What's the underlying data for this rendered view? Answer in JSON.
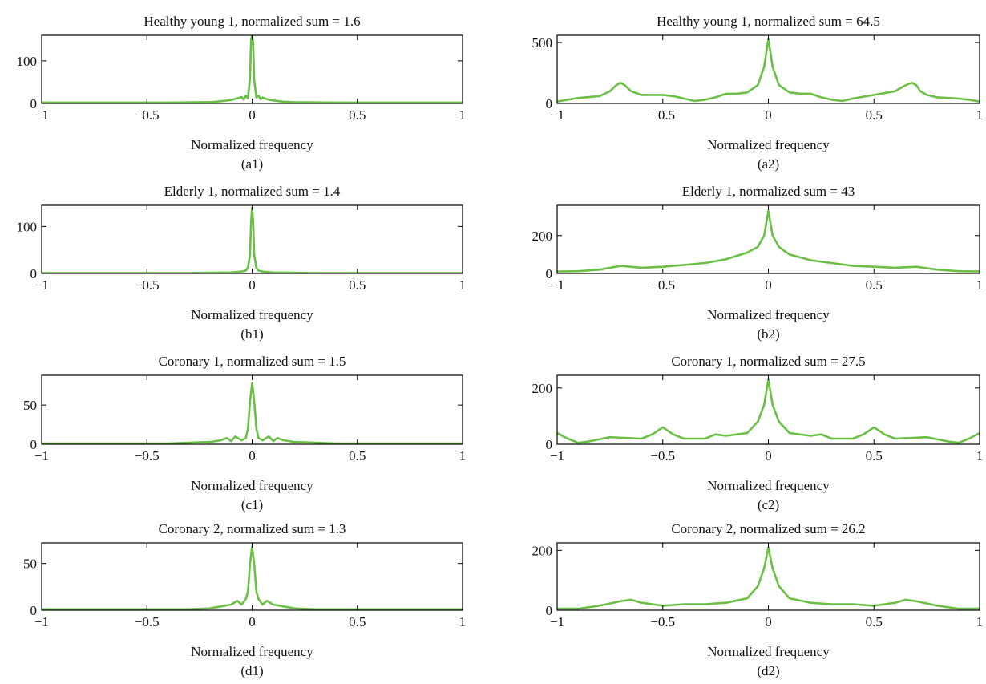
{
  "figure": {
    "line_color": "#6abf45"
  },
  "chart_data": [
    {
      "type": "line",
      "panel_label": "(a1)",
      "title": "Healthy young 1, normalized sum  = 1.6",
      "xlabel": "Normalized frequency",
      "ylabel": "",
      "xlim": [
        -1,
        1
      ],
      "ylim": [
        0,
        160
      ],
      "xticks": [
        -1,
        -0.5,
        0,
        0.5,
        1
      ],
      "xtick_labels": [
        "−1",
        "−0.5",
        "0",
        "0.5",
        "1"
      ],
      "yticks": [
        0,
        100
      ],
      "ytick_labels": [
        "0",
        "100"
      ],
      "series": [
        {
          "x": [
            -1,
            -0.4,
            -0.2,
            -0.15,
            -0.1,
            -0.07,
            -0.05,
            -0.04,
            -0.03,
            -0.02,
            -0.01,
            -0.005,
            0,
            0.005,
            0.01,
            0.02,
            0.03,
            0.04,
            0.05,
            0.07,
            0.1,
            0.15,
            0.2,
            0.4,
            1
          ],
          "y": [
            2,
            2,
            3,
            5,
            8,
            12,
            15,
            9,
            18,
            12,
            60,
            150,
            160,
            140,
            55,
            14,
            18,
            10,
            14,
            10,
            7,
            4,
            3,
            2,
            2
          ]
        }
      ]
    },
    {
      "type": "line",
      "panel_label": "(a2)",
      "title": "Healthy young 1, normalized sum  = 64.5",
      "xlabel": "Normalized frequency",
      "ylabel": "",
      "xlim": [
        -1,
        1
      ],
      "ylim": [
        0,
        560
      ],
      "xticks": [
        -1,
        -0.5,
        0,
        0.5,
        1
      ],
      "xtick_labels": [
        "−1",
        "−0.5",
        "0",
        "0.5",
        "1"
      ],
      "yticks": [
        0,
        500
      ],
      "ytick_labels": [
        "0",
        "500"
      ],
      "series": [
        {
          "x": [
            -1,
            -0.95,
            -0.9,
            -0.8,
            -0.75,
            -0.72,
            -0.7,
            -0.68,
            -0.65,
            -0.6,
            -0.5,
            -0.45,
            -0.4,
            -0.35,
            -0.3,
            -0.25,
            -0.2,
            -0.15,
            -0.1,
            -0.05,
            -0.02,
            0,
            0.02,
            0.05,
            0.1,
            0.15,
            0.2,
            0.25,
            0.3,
            0.35,
            0.4,
            0.5,
            0.6,
            0.65,
            0.68,
            0.7,
            0.72,
            0.75,
            0.8,
            0.9,
            0.95,
            1
          ],
          "y": [
            15,
            30,
            45,
            60,
            100,
            150,
            170,
            150,
            100,
            70,
            70,
            60,
            40,
            20,
            30,
            50,
            80,
            80,
            90,
            150,
            300,
            530,
            300,
            150,
            90,
            80,
            80,
            50,
            30,
            20,
            40,
            70,
            100,
            150,
            170,
            150,
            100,
            70,
            50,
            40,
            30,
            15
          ]
        }
      ]
    },
    {
      "type": "line",
      "panel_label": "(b1)",
      "title": "Elderly 1, normalized sum  = 1.4",
      "xlabel": "Normalized frequency",
      "ylabel": "",
      "xlim": [
        -1,
        1
      ],
      "ylim": [
        0,
        145
      ],
      "xticks": [
        -1,
        -0.5,
        0,
        0.5,
        1
      ],
      "xtick_labels": [
        "−1",
        "−0.5",
        "0",
        "0.5",
        "1"
      ],
      "yticks": [
        0,
        100
      ],
      "ytick_labels": [
        "0",
        "100"
      ],
      "series": [
        {
          "x": [
            -1,
            -0.3,
            -0.1,
            -0.05,
            -0.03,
            -0.02,
            -0.01,
            -0.005,
            0,
            0.005,
            0.01,
            0.02,
            0.03,
            0.05,
            0.1,
            0.3,
            1
          ],
          "y": [
            1,
            1,
            2,
            4,
            6,
            12,
            40,
            110,
            140,
            110,
            40,
            12,
            6,
            4,
            2,
            1,
            1
          ]
        }
      ]
    },
    {
      "type": "line",
      "panel_label": "(b2)",
      "title": "Elderly 1, normalized sum  = 43",
      "xlabel": "Normalized frequency",
      "ylabel": "",
      "xlim": [
        -1,
        1
      ],
      "ylim": [
        0,
        360
      ],
      "xticks": [
        -1,
        -0.5,
        0,
        0.5,
        1
      ],
      "xtick_labels": [
        "−1",
        "−0.5",
        "0",
        "0.5",
        "1"
      ],
      "yticks": [
        0,
        200
      ],
      "ytick_labels": [
        "0",
        "200"
      ],
      "series": [
        {
          "x": [
            -1,
            -0.9,
            -0.8,
            -0.7,
            -0.6,
            -0.5,
            -0.4,
            -0.3,
            -0.2,
            -0.1,
            -0.05,
            -0.02,
            0,
            0.02,
            0.05,
            0.1,
            0.2,
            0.3,
            0.4,
            0.5,
            0.6,
            0.7,
            0.8,
            0.9,
            1
          ],
          "y": [
            10,
            12,
            20,
            40,
            30,
            35,
            45,
            55,
            75,
            110,
            140,
            200,
            330,
            200,
            140,
            100,
            70,
            55,
            40,
            35,
            30,
            35,
            20,
            12,
            10
          ]
        }
      ]
    },
    {
      "type": "line",
      "panel_label": "(c1)",
      "title": "Coronary 1, normalized sum  = 1.5",
      "xlabel": "Normalized frequency",
      "ylabel": "",
      "xlim": [
        -1,
        1
      ],
      "ylim": [
        0,
        88
      ],
      "xticks": [
        -1,
        -0.5,
        0,
        0.5,
        1
      ],
      "xtick_labels": [
        "−1",
        "−0.5",
        "0",
        "0.5",
        "1"
      ],
      "yticks": [
        0,
        50
      ],
      "ytick_labels": [
        "0",
        "50"
      ],
      "series": [
        {
          "x": [
            -1,
            -0.4,
            -0.3,
            -0.2,
            -0.15,
            -0.12,
            -0.1,
            -0.08,
            -0.05,
            -0.03,
            -0.02,
            -0.01,
            0,
            0.01,
            0.02,
            0.03,
            0.05,
            0.08,
            0.1,
            0.12,
            0.15,
            0.2,
            0.3,
            0.4,
            1
          ],
          "y": [
            1,
            1,
            2,
            3,
            5,
            8,
            4,
            10,
            5,
            8,
            20,
            55,
            78,
            55,
            20,
            8,
            5,
            10,
            4,
            8,
            5,
            3,
            2,
            1,
            1
          ]
        }
      ]
    },
    {
      "type": "line",
      "panel_label": "(c2)",
      "title": "Coronary 1, normalized sum  = 27.5",
      "xlabel": "Normalized frequency",
      "ylabel": "",
      "xlim": [
        -1,
        1
      ],
      "ylim": [
        0,
        245
      ],
      "xticks": [
        -1,
        -0.5,
        0,
        0.5,
        1
      ],
      "xtick_labels": [
        "−1",
        "−0.5",
        "0",
        "0.5",
        "1"
      ],
      "yticks": [
        0,
        200
      ],
      "ytick_labels": [
        "0",
        "200"
      ],
      "series": [
        {
          "x": [
            -1,
            -0.95,
            -0.9,
            -0.85,
            -0.75,
            -0.6,
            -0.55,
            -0.5,
            -0.45,
            -0.4,
            -0.3,
            -0.25,
            -0.2,
            -0.1,
            -0.05,
            -0.02,
            0,
            0.02,
            0.05,
            0.1,
            0.2,
            0.25,
            0.3,
            0.4,
            0.45,
            0.5,
            0.55,
            0.6,
            0.75,
            0.85,
            0.9,
            0.95,
            1
          ],
          "y": [
            40,
            20,
            5,
            10,
            25,
            20,
            35,
            60,
            35,
            20,
            20,
            35,
            30,
            40,
            80,
            140,
            230,
            140,
            80,
            40,
            30,
            35,
            20,
            20,
            35,
            60,
            35,
            20,
            25,
            10,
            5,
            20,
            40
          ]
        }
      ]
    },
    {
      "type": "line",
      "panel_label": "(d1)",
      "title": "Coronary 2, normalized sum  = 1.3",
      "xlabel": "Normalized frequency",
      "ylabel": "",
      "xlim": [
        -1,
        1
      ],
      "ylim": [
        0,
        72
      ],
      "xticks": [
        -1,
        -0.5,
        0,
        0.5,
        1
      ],
      "xtick_labels": [
        "−1",
        "−0.5",
        "0",
        "0.5",
        "1"
      ],
      "yticks": [
        0,
        50
      ],
      "ytick_labels": [
        "0",
        "50"
      ],
      "series": [
        {
          "x": [
            -1,
            -0.3,
            -0.2,
            -0.15,
            -0.1,
            -0.07,
            -0.05,
            -0.03,
            -0.02,
            -0.01,
            0,
            0.01,
            0.02,
            0.03,
            0.05,
            0.07,
            0.1,
            0.15,
            0.2,
            0.3,
            1
          ],
          "y": [
            1,
            1,
            2,
            4,
            6,
            10,
            6,
            12,
            20,
            50,
            68,
            50,
            20,
            12,
            6,
            10,
            6,
            4,
            2,
            1,
            1
          ]
        }
      ]
    },
    {
      "type": "line",
      "panel_label": "(d2)",
      "title": "Coronary 2, normalized sum  = 26.2",
      "xlabel": "Normalized frequency",
      "ylabel": "",
      "xlim": [
        -1,
        1
      ],
      "ylim": [
        0,
        225
      ],
      "xticks": [
        -1,
        -0.5,
        0,
        0.5,
        1
      ],
      "xtick_labels": [
        "−1",
        "−0.5",
        "0",
        "0.5",
        "1"
      ],
      "yticks": [
        0,
        200
      ],
      "ytick_labels": [
        "0",
        "200"
      ],
      "series": [
        {
          "x": [
            -1,
            -0.9,
            -0.8,
            -0.7,
            -0.65,
            -0.6,
            -0.5,
            -0.4,
            -0.3,
            -0.2,
            -0.1,
            -0.05,
            -0.02,
            0,
            0.02,
            0.05,
            0.1,
            0.2,
            0.3,
            0.4,
            0.5,
            0.6,
            0.65,
            0.7,
            0.8,
            0.9,
            1
          ],
          "y": [
            5,
            5,
            15,
            30,
            35,
            25,
            15,
            20,
            20,
            25,
            40,
            80,
            140,
            210,
            140,
            80,
            40,
            25,
            20,
            20,
            15,
            25,
            35,
            30,
            15,
            5,
            5
          ]
        }
      ]
    }
  ]
}
